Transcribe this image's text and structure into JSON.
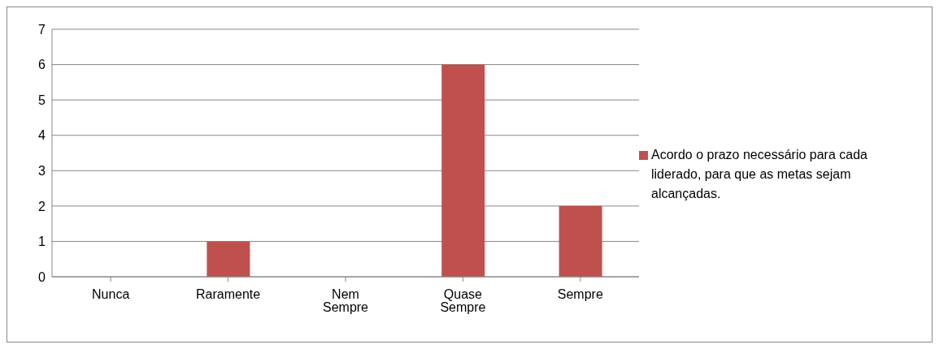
{
  "chart_data": {
    "type": "bar",
    "categories": [
      "Nunca",
      "Raramente",
      "Nem Sempre",
      "Quase Sempre",
      "Sempre"
    ],
    "series": [
      {
        "name": "Acordo o prazo necessário para cada liderado, para que as metas sejam alcançadas.",
        "color": "#c0504d",
        "values": [
          0,
          1,
          0,
          6,
          2
        ]
      }
    ],
    "ylim": [
      0,
      7
    ],
    "yticks": [
      0,
      1,
      2,
      3,
      4,
      5,
      6,
      7
    ],
    "grid": "y",
    "legend": "right"
  }
}
